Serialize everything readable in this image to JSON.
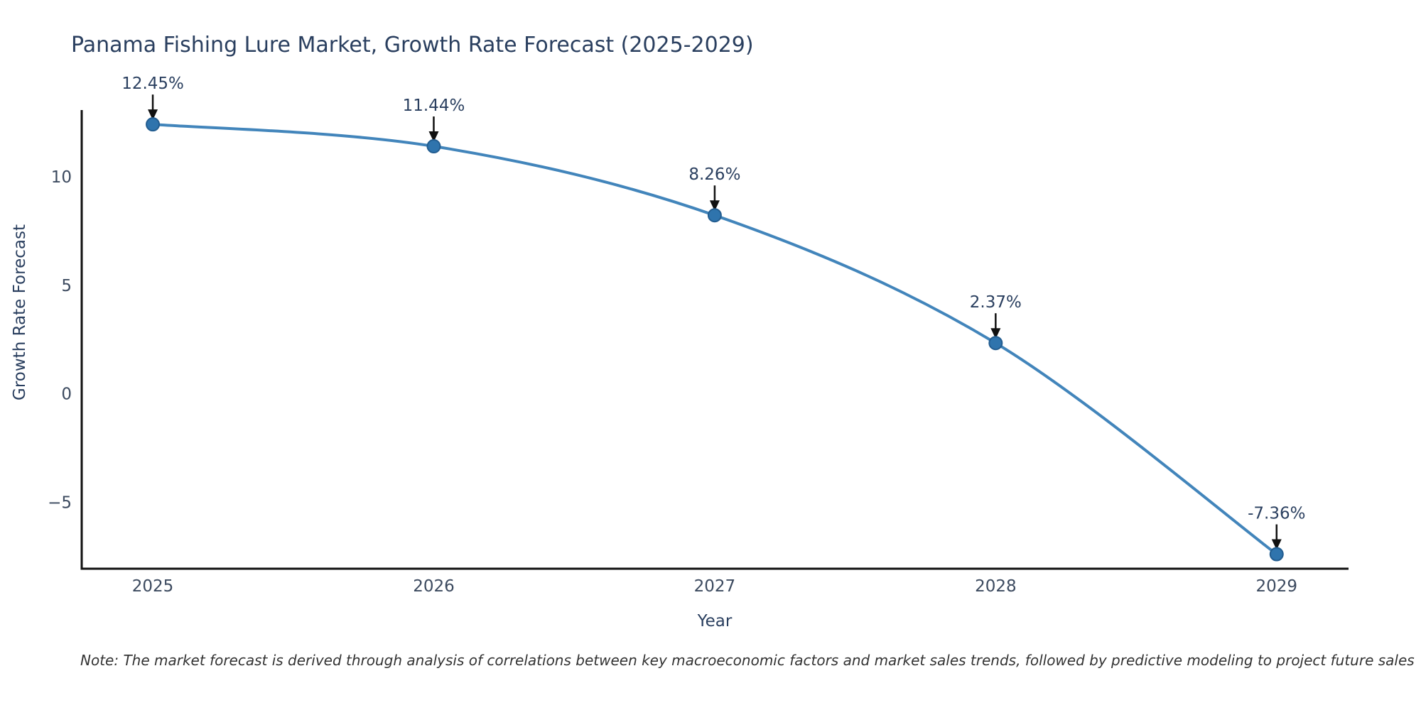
{
  "chart_data": {
    "type": "line",
    "title": "Panama Fishing Lure Market, Growth Rate Forecast (2025-2029)",
    "xlabel": "Year",
    "ylabel": "Growth Rate Forecast",
    "x": [
      2025,
      2026,
      2027,
      2028,
      2029
    ],
    "x_tick_labels": [
      "2025",
      "2026",
      "2027",
      "2028",
      "2029"
    ],
    "series": [
      {
        "name": "Growth Rate Forecast",
        "values": [
          12.45,
          11.44,
          8.26,
          2.37,
          -7.36
        ]
      }
    ],
    "point_labels": [
      "12.45%",
      "11.44%",
      "8.26%",
      "2.37%",
      "-7.36%"
    ],
    "y_ticks": [
      10,
      5,
      0,
      -5
    ],
    "ylim": [
      -8.03,
      13.11
    ],
    "xlim": [
      2024.747,
      2029.256
    ],
    "grid": false,
    "legend": "none",
    "line_shape": "smooth",
    "colors": {
      "line": "#4285bb",
      "marker_fill": "#2f74ad",
      "marker_stroke": "#235d90",
      "axis": "#111111",
      "tick_text": "#3c4a5f",
      "annotation_text": "#2a3f5f",
      "annotation_arrow": "#111111"
    }
  },
  "footer": {
    "note": "Note: The market forecast is derived through analysis of correlations between key macroeconomic factors and market sales trends, followed by predictive modeling to project future sales"
  }
}
